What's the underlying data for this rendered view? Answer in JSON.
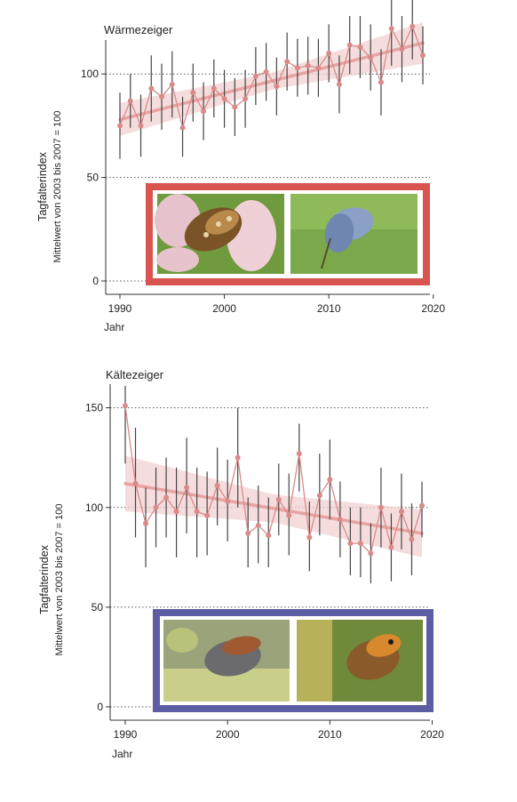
{
  "chart_data": [
    {
      "type": "line",
      "title": "Wärmezeiger",
      "ylabel": "Tagfalterindex",
      "ylabel2": "Mittelwert von 2003 bis 2007 = 100",
      "xlabel": "Jahr",
      "xlim": [
        1989,
        2020
      ],
      "ylim": [
        0,
        135
      ],
      "xticks": [
        1990,
        2000,
        2010,
        2020
      ],
      "yticks": [
        0,
        50,
        100
      ],
      "grid": "dotted horizontal",
      "x": [
        1990,
        1991,
        1992,
        1993,
        1994,
        1995,
        1996,
        1997,
        1998,
        1999,
        2000,
        2001,
        2002,
        2003,
        2004,
        2005,
        2006,
        2007,
        2008,
        2009,
        2010,
        2011,
        2012,
        2013,
        2014,
        2015,
        2016,
        2017,
        2018,
        2019
      ],
      "values": [
        75,
        87,
        75,
        93,
        89,
        95,
        74,
        91,
        82,
        93,
        88,
        84,
        88,
        99,
        101,
        94,
        106,
        103,
        104,
        103,
        110,
        95,
        114,
        113,
        108,
        96,
        122,
        112,
        123,
        109
      ],
      "lower": [
        59,
        74,
        60,
        77,
        73,
        79,
        60,
        77,
        68,
        79,
        74,
        70,
        74,
        85,
        87,
        80,
        92,
        89,
        90,
        89,
        96,
        81,
        100,
        98,
        92,
        80,
        104,
        96,
        107,
        95
      ],
      "upper": [
        91,
        100,
        90,
        109,
        105,
        111,
        89,
        105,
        96,
        107,
        102,
        98,
        102,
        113,
        115,
        108,
        120,
        117,
        118,
        117,
        124,
        109,
        128,
        128,
        124,
        112,
        138,
        128,
        138,
        123
      ],
      "trend": {
        "start": [
          1990,
          78
        ],
        "end": [
          2019,
          115
        ]
      },
      "photo_frame_color": "#d9544f",
      "line_color": "#d98a8a",
      "trend_color": "#e8a3a3"
    },
    {
      "type": "line",
      "title": "Kältezeiger",
      "ylabel": "Tagfalterindex",
      "ylabel2": "Mittelwert von 2003 bis 2007 = 100",
      "xlabel": "Jahr",
      "xlim": [
        1989,
        2020
      ],
      "ylim": [
        0,
        175
      ],
      "xticks": [
        1990,
        2000,
        2010,
        2020
      ],
      "yticks": [
        0,
        50,
        100,
        150
      ],
      "grid": "dotted horizontal",
      "x": [
        1990,
        1991,
        1992,
        1993,
        1994,
        1995,
        1996,
        1997,
        1998,
        1999,
        2000,
        2001,
        2002,
        2003,
        2004,
        2005,
        2006,
        2007,
        2008,
        2009,
        2010,
        2011,
        2012,
        2013,
        2014,
        2015,
        2016,
        2017,
        2018,
        2019
      ],
      "values": [
        151,
        112,
        92,
        100,
        105,
        98,
        110,
        98,
        96,
        111,
        103,
        125,
        87,
        91,
        86,
        104,
        96,
        127,
        85,
        106,
        114,
        94,
        82,
        82,
        77,
        100,
        80,
        98,
        84,
        101
      ],
      "lower": [
        122,
        85,
        70,
        80,
        85,
        75,
        87,
        75,
        76,
        91,
        83,
        100,
        70,
        72,
        70,
        86,
        76,
        108,
        68,
        86,
        94,
        75,
        66,
        65,
        62,
        80,
        63,
        79,
        66,
        85
      ],
      "upper": [
        161,
        140,
        110,
        120,
        125,
        120,
        135,
        120,
        118,
        130,
        124,
        150,
        105,
        111,
        105,
        122,
        117,
        142,
        103,
        127,
        134,
        113,
        100,
        100,
        92,
        120,
        97,
        117,
        102,
        113
      ],
      "trend": {
        "start": [
          1990,
          112
        ],
        "end": [
          2019,
          87
        ]
      },
      "photo_frame_color": "#5d5da3",
      "line_color": "#d98a8a",
      "trend_color": "#e8a3a3"
    }
  ]
}
